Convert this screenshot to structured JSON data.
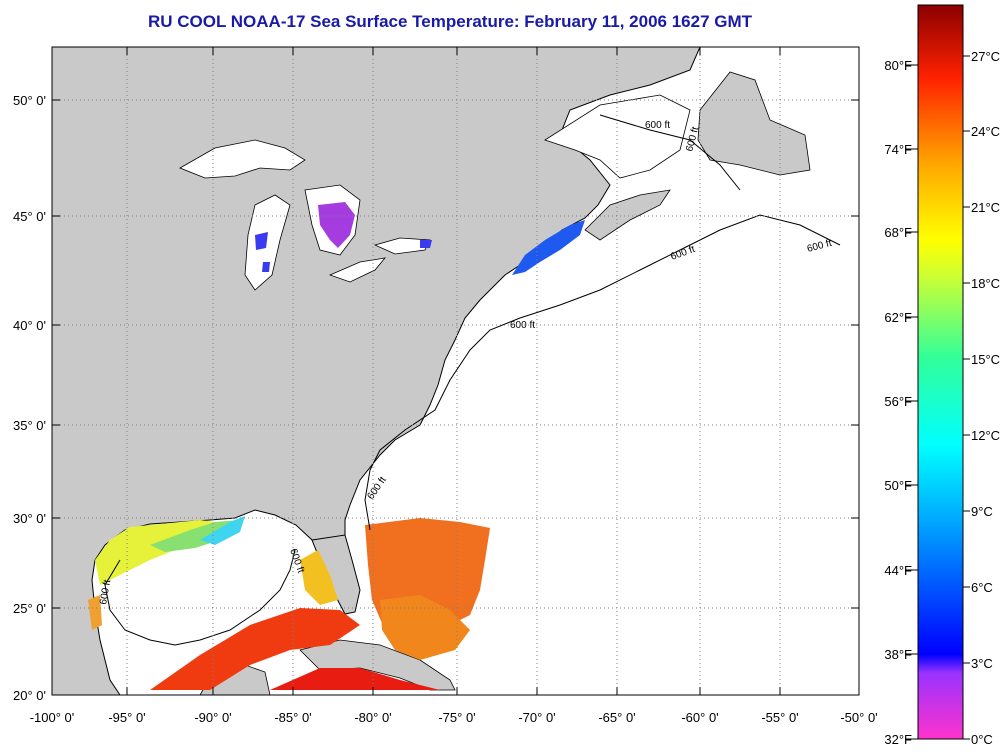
{
  "title": "RU COOL  NOAA-17  Sea Surface Temperature:  February 11, 2006 1627 GMT",
  "map": {
    "lon_labels": [
      "-100° 0'",
      "-95° 0'",
      "-90° 0'",
      "-85° 0'",
      "-80° 0'",
      "-75° 0'",
      "-70° 0'",
      "-65° 0'",
      "-60° 0'",
      "-55° 0'",
      "-50° 0'"
    ],
    "lat_labels": [
      "50° 0'",
      "45° 0'",
      "40° 0'",
      "35° 0'",
      "30° 0'",
      "25° 0'",
      "20° 0'"
    ],
    "contour_label": "600 ft",
    "colors": {
      "land": "#c9c9c9",
      "ocean_nodata": "#ffffff",
      "grid": "#7f7f7f"
    }
  },
  "colorbar": {
    "fahrenheit_labels": [
      "80°F",
      "74°F",
      "68°F",
      "62°F",
      "56°F",
      "50°F",
      "44°F",
      "38°F",
      "32°F"
    ],
    "celsius_labels": [
      "27°C",
      "24°C",
      "21°C",
      "18°C",
      "15°C",
      "12°C",
      "9°C",
      "6°C",
      "3°C",
      "0°C"
    ]
  }
}
